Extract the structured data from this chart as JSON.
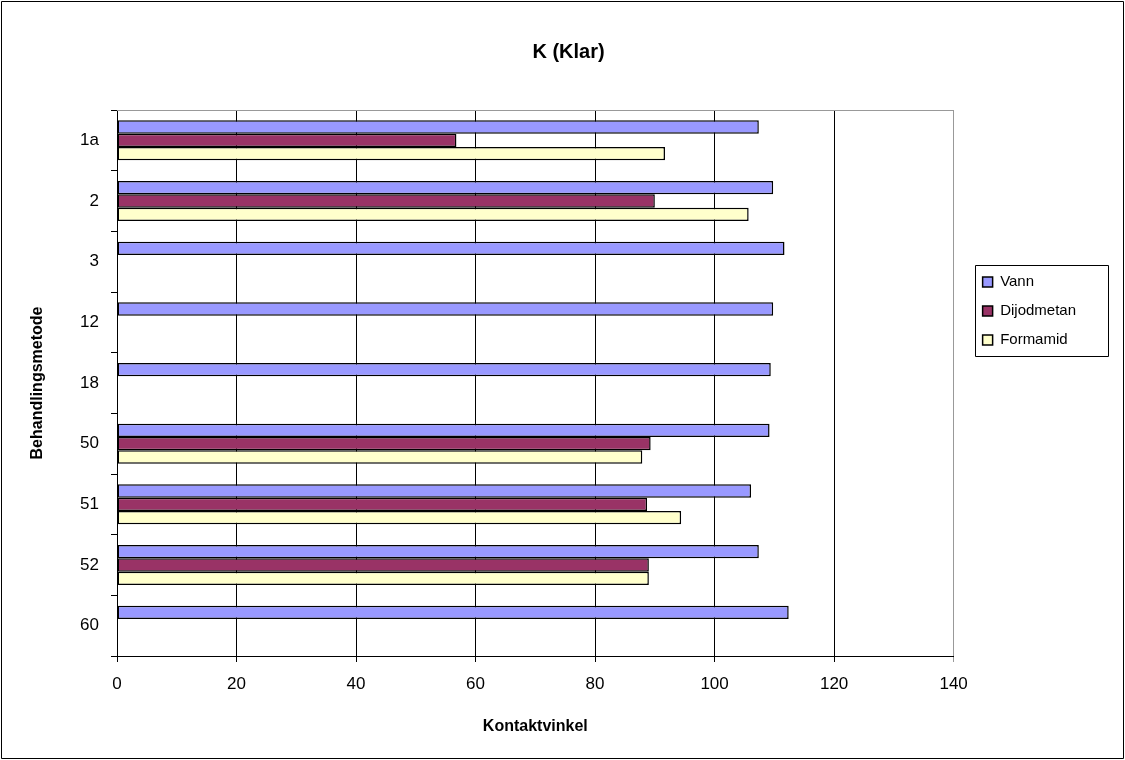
{
  "chart_data": {
    "type": "bar",
    "orientation": "horizontal",
    "title": "K (Klar)",
    "xlabel": "Kontaktvinkel",
    "ylabel": "Behandlingsmetode",
    "categories": [
      "1a",
      "2",
      "3",
      "12",
      "18",
      "50",
      "51",
      "52",
      "60"
    ],
    "series": [
      {
        "name": "Vann",
        "color": "#9999ff",
        "values": [
          107.4,
          109.8,
          111.7,
          109.8,
          109.4,
          109.2,
          106.1,
          107.4,
          112.4
        ]
      },
      {
        "name": "Dijodmetan",
        "color": "#993366",
        "values": [
          56.8,
          90.0,
          null,
          null,
          null,
          89.3,
          88.7,
          89.0,
          null
        ]
      },
      {
        "name": "Formamid",
        "color": "#ffffcc",
        "values": [
          91.7,
          105.7,
          null,
          null,
          null,
          87.9,
          94.4,
          89.0,
          null
        ]
      }
    ],
    "xlim": [
      0,
      140
    ],
    "xticks": [
      0,
      20,
      40,
      60,
      80,
      100,
      120,
      140
    ],
    "grid": "x",
    "legend": "right"
  }
}
